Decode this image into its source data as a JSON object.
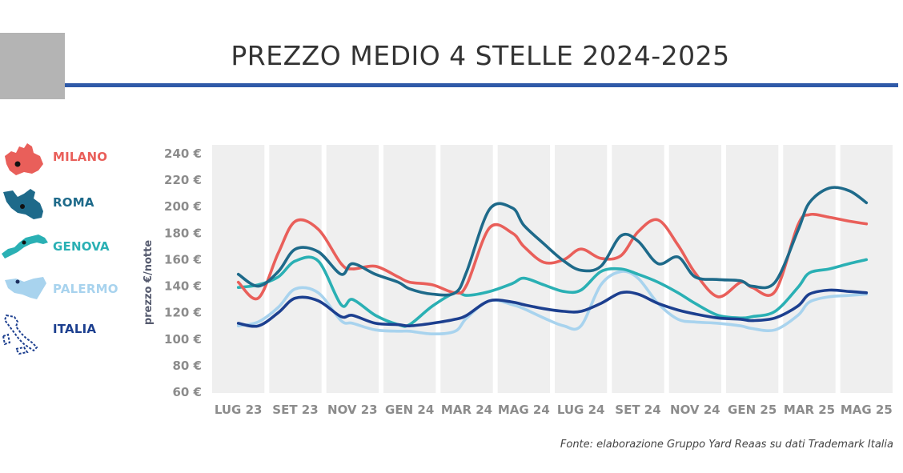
{
  "title": "PREZZO MEDIO 4 STELLE 2024-2025",
  "source": "Fonte: elaborazione Gruppo Yard Reaas su dati Trademark Italia",
  "legend": [
    {
      "label": "MILANO",
      "color": "#e95f5a",
      "icon": "milano-map-icon"
    },
    {
      "label": "ROMA",
      "color": "#1e6a8a",
      "icon": "roma-map-icon"
    },
    {
      "label": "GENOVA",
      "color": "#2ab0b4",
      "icon": "genova-map-icon"
    },
    {
      "label": "PALERMO",
      "color": "#a8d3ee",
      "icon": "palermo-map-icon"
    },
    {
      "label": "ITALIA",
      "color": "#1c3f8f",
      "icon": "italia-map-icon"
    }
  ],
  "chart_data": {
    "type": "line",
    "title": "PREZZO MEDIO 4 STELLE 2024-2025",
    "xlabel": "",
    "ylabel": "prezzo €/notte",
    "ylim": [
      60,
      240
    ],
    "yticks": [
      "60 €",
      "80 €",
      "100 €",
      "120 €",
      "140 €",
      "160 €",
      "180 €",
      "200 €",
      "220 €",
      "240 €"
    ],
    "ytick_values": [
      60,
      80,
      100,
      120,
      140,
      160,
      180,
      200,
      220,
      240
    ],
    "categories": [
      "LUG 23",
      "SET 23",
      "NOV 23",
      "GEN 24",
      "MAR 24",
      "MAG 24",
      "LUG 24",
      "SET 24",
      "NOV 24",
      "GEN 25",
      "MAR 25",
      "MAG 25"
    ],
    "x": [
      0,
      0.35,
      0.7,
      1,
      1.4,
      1.8,
      2,
      2.4,
      2.8,
      3,
      3.4,
      3.8,
      4,
      4.4,
      4.8,
      5,
      5.35,
      5.7,
      6,
      6.35,
      6.7,
      7,
      7.35,
      7.7,
      8,
      8.4,
      8.8,
      9,
      9.4,
      9.8,
      10,
      10.35,
      10.7,
      11
    ],
    "grid": true,
    "series": [
      {
        "name": "MILANO",
        "color": "#e95f5a",
        "values": [
          143,
          131,
          165,
          189,
          183,
          157,
          153,
          155,
          147,
          143,
          141,
          135,
          141,
          184,
          180,
          170,
          158,
          160,
          168,
          161,
          163,
          181,
          190,
          171,
          150,
          132,
          143,
          139,
          136,
          186,
          194,
          192,
          189,
          187
        ]
      },
      {
        "name": "ROMA",
        "color": "#1e6a8a",
        "values": [
          149,
          140,
          151,
          168,
          166,
          149,
          157,
          149,
          143,
          138,
          134,
          135,
          151,
          198,
          199,
          186,
          172,
          159,
          152,
          155,
          178,
          174,
          157,
          162,
          147,
          145,
          144,
          140,
          143,
          182,
          203,
          214,
          212,
          203
        ]
      },
      {
        "name": "GENOVA",
        "color": "#2ab0b4",
        "values": [
          139,
          141,
          147,
          159,
          159,
          126,
          130,
          118,
          111,
          111,
          125,
          135,
          133,
          136,
          142,
          146,
          141,
          136,
          137,
          151,
          153,
          149,
          143,
          135,
          127,
          118,
          116,
          117,
          121,
          139,
          150,
          153,
          157,
          160
        ]
      },
      {
        "name": "PALERMO",
        "color": "#a8d3ee",
        "values": [
          110,
          113,
          124,
          138,
          135,
          114,
          112,
          107,
          106,
          106,
          104,
          106,
          116,
          129,
          126,
          123,
          116,
          110,
          110,
          141,
          151,
          146,
          127,
          115,
          113,
          112,
          110,
          108,
          107,
          118,
          128,
          132,
          133,
          134
        ]
      },
      {
        "name": "ITALIA",
        "color": "#1c3f8f",
        "values": [
          112,
          110,
          120,
          131,
          129,
          117,
          118,
          112,
          111,
          110,
          112,
          115,
          118,
          129,
          128,
          126,
          123,
          121,
          121,
          127,
          135,
          134,
          127,
          122,
          119,
          116,
          115,
          114,
          116,
          125,
          134,
          137,
          136,
          135
        ]
      }
    ]
  }
}
